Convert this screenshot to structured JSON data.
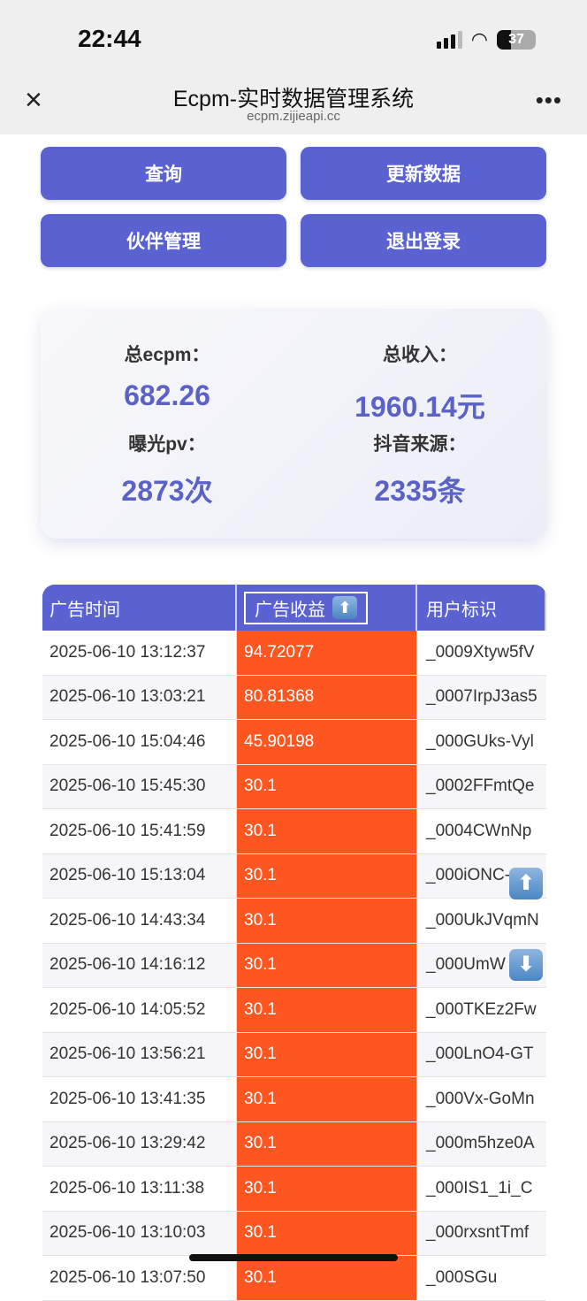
{
  "status_bar": {
    "time": "22:44",
    "battery": "37"
  },
  "browser": {
    "title": "Ecpm-实时数据管理系统",
    "url": "ecpm.zijieapi.cc",
    "close_icon": "×",
    "more_icon": "•••"
  },
  "buttons": {
    "query": "查询",
    "update": "更新数据",
    "partners": "伙伴管理",
    "logout": "退出登录"
  },
  "stats": {
    "ecpm_label": "总ecpm：",
    "ecpm_value": "682.26",
    "income_label": "总收入：",
    "income_value": "1960.14元",
    "pv_label": "曝光pv：",
    "pv_value": "2873次",
    "douyin_label": "抖音来源：",
    "douyin_value": "2335条"
  },
  "table": {
    "headers": [
      "广告时间",
      "广告收益",
      "用户标识"
    ],
    "sort_icon": "⬆",
    "rows": [
      [
        "2025-06-10 13:12:37",
        "94.72077",
        "_0009Xtyw5fV"
      ],
      [
        "2025-06-10 13:03:21",
        "80.81368",
        "_0007IrpJ3as5"
      ],
      [
        "2025-06-10 15:04:46",
        "45.90198",
        "_000GUks-Vyl"
      ],
      [
        "2025-06-10 15:45:30",
        "30.1",
        "_0002FFmtQe"
      ],
      [
        "2025-06-10 15:41:59",
        "30.1",
        "_0004CWnNp"
      ],
      [
        "2025-06-10 15:13:04",
        "30.1",
        "_000iONC-"
      ],
      [
        "2025-06-10 14:43:34",
        "30.1",
        "_000UkJVqmN"
      ],
      [
        "2025-06-10 14:16:12",
        "30.1",
        "_000UmW"
      ],
      [
        "2025-06-10 14:05:52",
        "30.1",
        "_000TKEz2Fw"
      ],
      [
        "2025-06-10 13:56:21",
        "30.1",
        "_000LnO4-GT"
      ],
      [
        "2025-06-10 13:41:35",
        "30.1",
        "_000Vx-GoMn"
      ],
      [
        "2025-06-10 13:29:42",
        "30.1",
        "_000m5hze0A"
      ],
      [
        "2025-06-10 13:11:38",
        "30.1",
        "_000IS1_1i_C"
      ],
      [
        "2025-06-10 13:10:03",
        "30.1",
        "_000rxsntTmf"
      ],
      [
        "2025-06-10 13:07:50",
        "30.1",
        "_000SGu"
      ]
    ]
  },
  "scroll_buttons": {
    "up": "⬆",
    "down": "⬇"
  }
}
